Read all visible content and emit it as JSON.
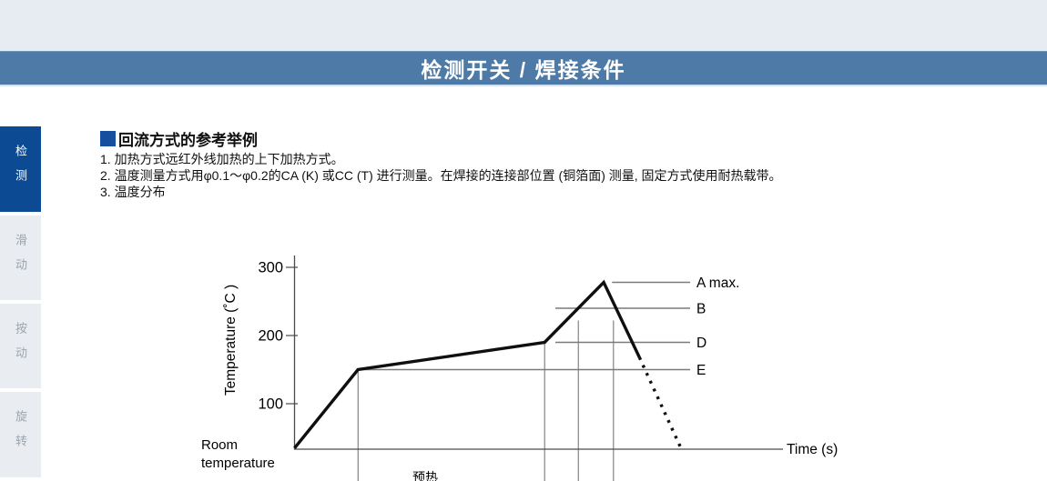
{
  "header": {
    "title": "检测开关 / 焊接条件"
  },
  "sidebar": {
    "items": [
      {
        "label": "检测",
        "active": true
      },
      {
        "label": "滑动",
        "active": false
      },
      {
        "label": "按动",
        "active": false
      },
      {
        "label": "旋转",
        "active": false
      }
    ]
  },
  "content": {
    "section_title": "回流方式的参考举例",
    "notes": [
      "1. 加热方式远红外线加热的上下加热方式。",
      "2. 温度测量方式用φ0.1～φ0.2的CA (K) 或CC (T) 进行测量。在焊接的连接部位置 (铜箔面) 测量, 固定方式使用耐热载带。",
      "3. 温度分布"
    ]
  },
  "colors": {
    "top_band": "#e7ebf2",
    "header_bar": "#4d7aa6",
    "header_text": "#ffffff",
    "sidebar_active_bg": "#0d4a94",
    "sidebar_active_text": "#ffffff",
    "sidebar_inactive_bg": "#e9edf2",
    "sidebar_inactive_text": "#9ba3ad",
    "section_marker": "#164f9e",
    "body_text": "#111111",
    "chart_reference_line": "#7a7a7a",
    "chart_profile_line": "#0f0f0f"
  },
  "chart_data": {
    "type": "line",
    "title": "",
    "xlabel": "Time (s)",
    "ylabel": "Temperature (˚C )",
    "grid": false,
    "x_axis_numeric_labels": false,
    "y_ticks": [
      300,
      200,
      100
    ],
    "ylim": [
      35,
      320
    ],
    "origin_label_lines": [
      "Room",
      "temperature"
    ],
    "profile": {
      "solid_points": [
        {
          "x_rel": 0.0,
          "temp_c": 35
        },
        {
          "x_rel": 0.13,
          "temp_c": 150
        },
        {
          "x_rel": 0.512,
          "temp_c": 190
        },
        {
          "x_rel": 0.633,
          "temp_c": 278
        },
        {
          "x_rel": 0.706,
          "temp_c": 168
        }
      ],
      "dashed_points": [
        {
          "x_rel": 0.706,
          "temp_c": 168
        },
        {
          "x_rel": 0.791,
          "temp_c": 35
        }
      ]
    },
    "reference_lines": [
      {
        "label": "A max.",
        "temp_c": 278,
        "x_start_rel": 0.65
      },
      {
        "label": "B",
        "temp_c": 240,
        "x_start_rel": 0.534
      },
      {
        "label": "D",
        "temp_c": 190,
        "x_start_rel": 0.534
      },
      {
        "label": "E",
        "temp_c": 150,
        "x_start_rel": 0.139
      }
    ],
    "vertical_guides": [
      {
        "x_rel": 0.13,
        "temp_top_c": 148
      },
      {
        "x_rel": 0.512,
        "temp_top_c": 188
      },
      {
        "x_rel": 0.581,
        "temp_top_c": 222
      },
      {
        "x_rel": 0.653,
        "temp_top_c": 222
      }
    ],
    "bottom_partial_label": "预热"
  }
}
